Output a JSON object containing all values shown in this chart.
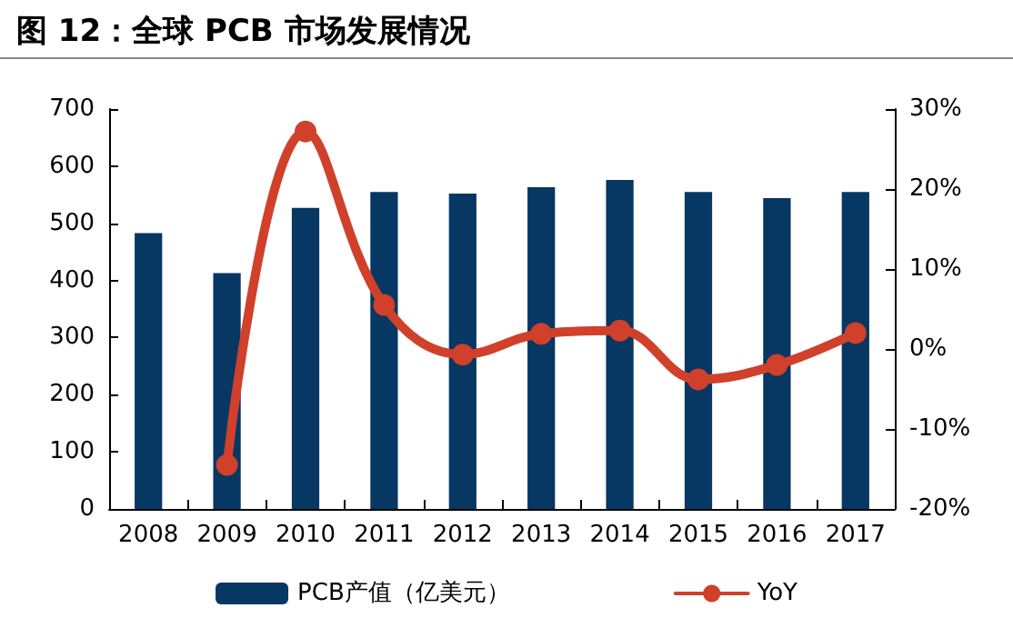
{
  "chart_data": {
    "type": "bar",
    "title": "图 12：全球 PCB 市场发展情况",
    "categories": [
      "2008",
      "2009",
      "2010",
      "2011",
      "2012",
      "2013",
      "2014",
      "2015",
      "2016",
      "2017"
    ],
    "series": [
      {
        "name": "PCB产值（亿美元）",
        "color": "#073763",
        "values": [
          483,
          413,
          527,
          555,
          552,
          563,
          576,
          555,
          544,
          555
        ]
      },
      {
        "name": "YoY",
        "type": "line",
        "axis": "y2",
        "color": "#d0402a",
        "marker": "circle",
        "line_style": "solid",
        "values": [
          null,
          -14.5,
          27.2,
          5.5,
          -0.7,
          1.9,
          2.3,
          -3.8,
          -2.0,
          2.0
        ]
      }
    ],
    "ylim": [
      0,
      700
    ],
    "yticks": [
      0,
      100,
      200,
      300,
      400,
      500,
      600,
      700
    ],
    "y2lim": [
      -20,
      30
    ],
    "y2ticks": [
      {
        "value": -20,
        "label": "-20%"
      },
      {
        "value": -10,
        "label": "-10%"
      },
      {
        "value": 0,
        "label": "0%"
      },
      {
        "value": 10,
        "label": "10%"
      },
      {
        "value": 20,
        "label": "20%"
      },
      {
        "value": 30,
        "label": "30%"
      }
    ],
    "grid": false,
    "legend": "bottom"
  }
}
